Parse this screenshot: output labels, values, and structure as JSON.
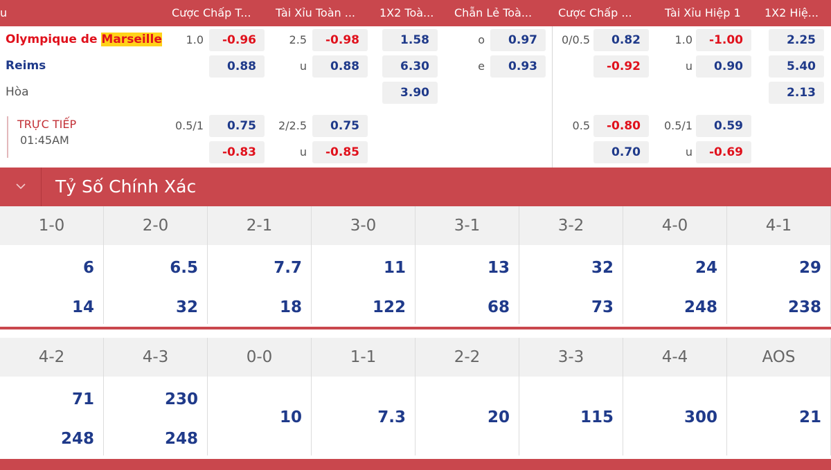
{
  "header": {
    "col0": "u",
    "col1": "Cược Chấp T...",
    "col2": "Tài Xỉu Toàn ...",
    "col3": "1X2 Toà...",
    "col4": "Chẵn Lẻ Toà...",
    "col5": "Cược Chấp ...",
    "col6": "Tài Xỉu Hiệp 1",
    "col7": "1X2 Hiệ..."
  },
  "match": {
    "home_prefix": "Olympique de ",
    "home_highlight": "Marseille",
    "away": "Reims",
    "draw": "Hòa",
    "live_label": "TRỰC TIẾP",
    "live_time": "01:45AM"
  },
  "odds": {
    "r1": {
      "hcp_line": "1.0",
      "hcp": "-0.96",
      "ou_line": "2.5",
      "ou": "-0.98",
      "x12": "1.58",
      "oe_label": "o",
      "oe": "0.97",
      "h1_hcp_line": "0/0.5",
      "h1_hcp": "0.82",
      "h1_ou_line": "1.0",
      "h1_ou": "-1.00",
      "h1_x12": "2.25"
    },
    "r2": {
      "hcp": "0.88",
      "ou_label": "u",
      "ou": "0.88",
      "x12": "6.30",
      "oe_label": "e",
      "oe": "0.93",
      "h1_hcp": "-0.92",
      "h1_ou_label": "u",
      "h1_ou": "0.90",
      "h1_x12": "5.40"
    },
    "r3": {
      "x12": "3.90",
      "h1_x12": "2.13"
    },
    "r4": {
      "hcp_line": "0.5/1",
      "hcp": "0.75",
      "ou_line": "2/2.5",
      "ou": "0.75",
      "h1_hcp_line": "0.5",
      "h1_hcp": "-0.80",
      "h1_ou_line": "0.5/1",
      "h1_ou": "0.59"
    },
    "r5": {
      "hcp": "-0.83",
      "ou_label": "u",
      "ou": "-0.85",
      "h1_hcp": "0.70",
      "h1_ou_label": "u",
      "h1_ou": "-0.69"
    }
  },
  "section": {
    "title": "Tỷ Số Chính Xác"
  },
  "scores_row1": [
    {
      "score": "1-0",
      "a": "6",
      "b": "14"
    },
    {
      "score": "2-0",
      "a": "6.5",
      "b": "32"
    },
    {
      "score": "2-1",
      "a": "7.7",
      "b": "18"
    },
    {
      "score": "3-0",
      "a": "11",
      "b": "122"
    },
    {
      "score": "3-1",
      "a": "13",
      "b": "68"
    },
    {
      "score": "3-2",
      "a": "32",
      "b": "73"
    },
    {
      "score": "4-0",
      "a": "24",
      "b": "248"
    },
    {
      "score": "4-1",
      "a": "29",
      "b": "238"
    }
  ],
  "scores_row2": [
    {
      "score": "4-2",
      "a": "71",
      "b": "248"
    },
    {
      "score": "4-3",
      "a": "230",
      "b": "248"
    },
    {
      "score": "0-0",
      "a": "10"
    },
    {
      "score": "1-1",
      "a": "7.3"
    },
    {
      "score": "2-2",
      "a": "20"
    },
    {
      "score": "3-3",
      "a": "115"
    },
    {
      "score": "4-4",
      "a": "300"
    },
    {
      "score": "AOS",
      "a": "21"
    }
  ],
  "colors": {
    "accent": "#c9474d",
    "positive": "#1f3a8a",
    "negative": "#e0111c",
    "highlight": "#ffd21a"
  }
}
